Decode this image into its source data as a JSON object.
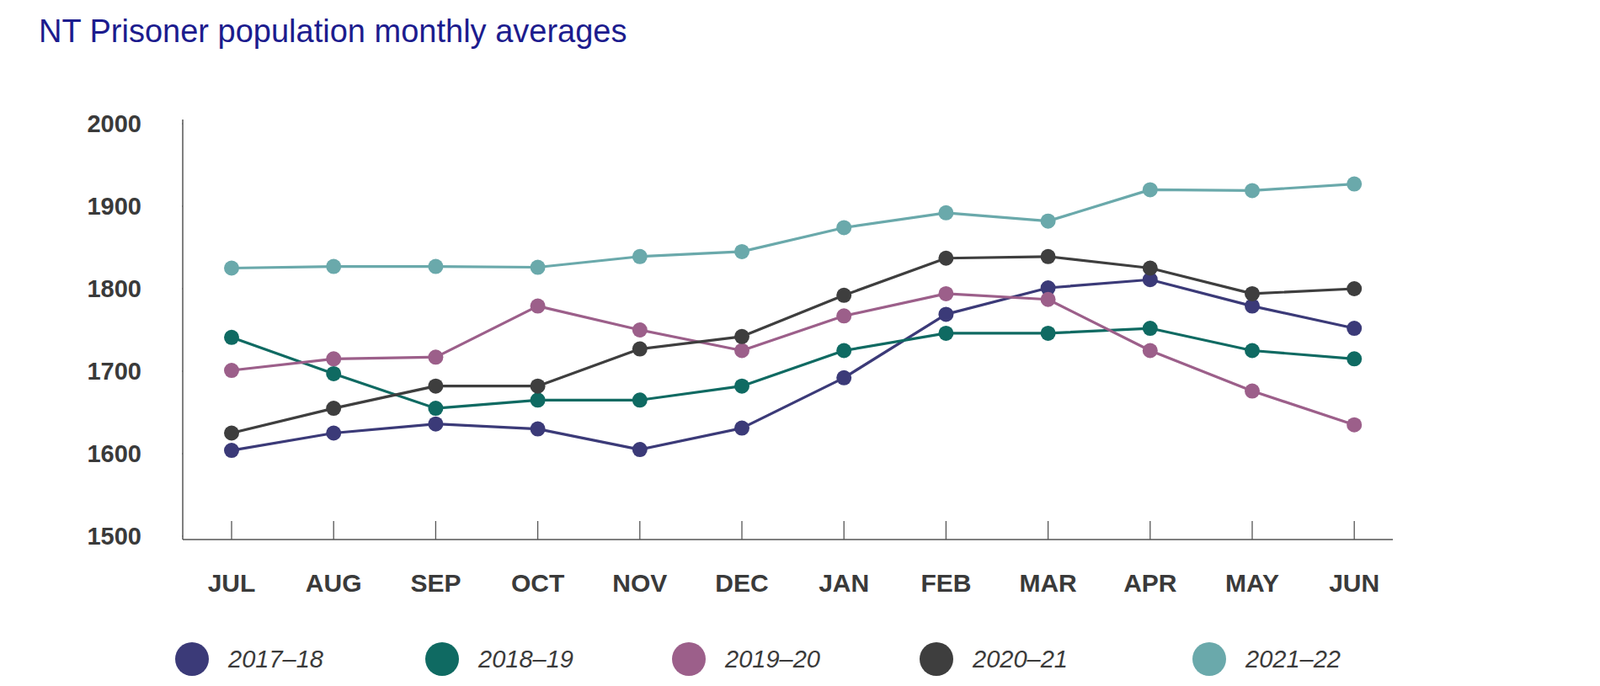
{
  "chart_data": {
    "type": "line",
    "title": "NT Prisoner population monthly averages",
    "categories": [
      "JUL",
      "AUG",
      "SEP",
      "OCT",
      "NOV",
      "DEC",
      "JAN",
      "FEB",
      "MAR",
      "APR",
      "MAY",
      "JUN"
    ],
    "series": [
      {
        "name": "2017–18",
        "color": "#3b3a78",
        "values": [
          1604,
          1625,
          1636,
          1630,
          1605,
          1631,
          1692,
          1769,
          1801,
          1811,
          1779,
          1752
        ]
      },
      {
        "name": "2018–19",
        "color": "#0f6a62",
        "values": [
          1741,
          1697,
          1655,
          1665,
          1665,
          1682,
          1725,
          1746,
          1746,
          1752,
          1725,
          1715
        ]
      },
      {
        "name": "2019–20",
        "color": "#9c5f8a",
        "values": [
          1701,
          1715,
          1717,
          1779,
          1750,
          1725,
          1767,
          1794,
          1787,
          1725,
          1676,
          1635
        ]
      },
      {
        "name": "2020–21",
        "color": "#3e3e3e",
        "values": [
          1625,
          1655,
          1682,
          1682,
          1727,
          1742,
          1792,
          1837,
          1839,
          1825,
          1794,
          1800
        ]
      },
      {
        "name": "2021–22",
        "color": "#6aa9ab",
        "values": [
          1825,
          1827,
          1827,
          1826,
          1839,
          1845,
          1874,
          1892,
          1882,
          1920,
          1919,
          1927
        ]
      }
    ],
    "ylim": [
      1500,
      2000
    ],
    "yticks": [
      1500,
      1600,
      1700,
      1800,
      1900,
      2000
    ],
    "grid": false,
    "legend": "bottom",
    "marker": "circle"
  }
}
